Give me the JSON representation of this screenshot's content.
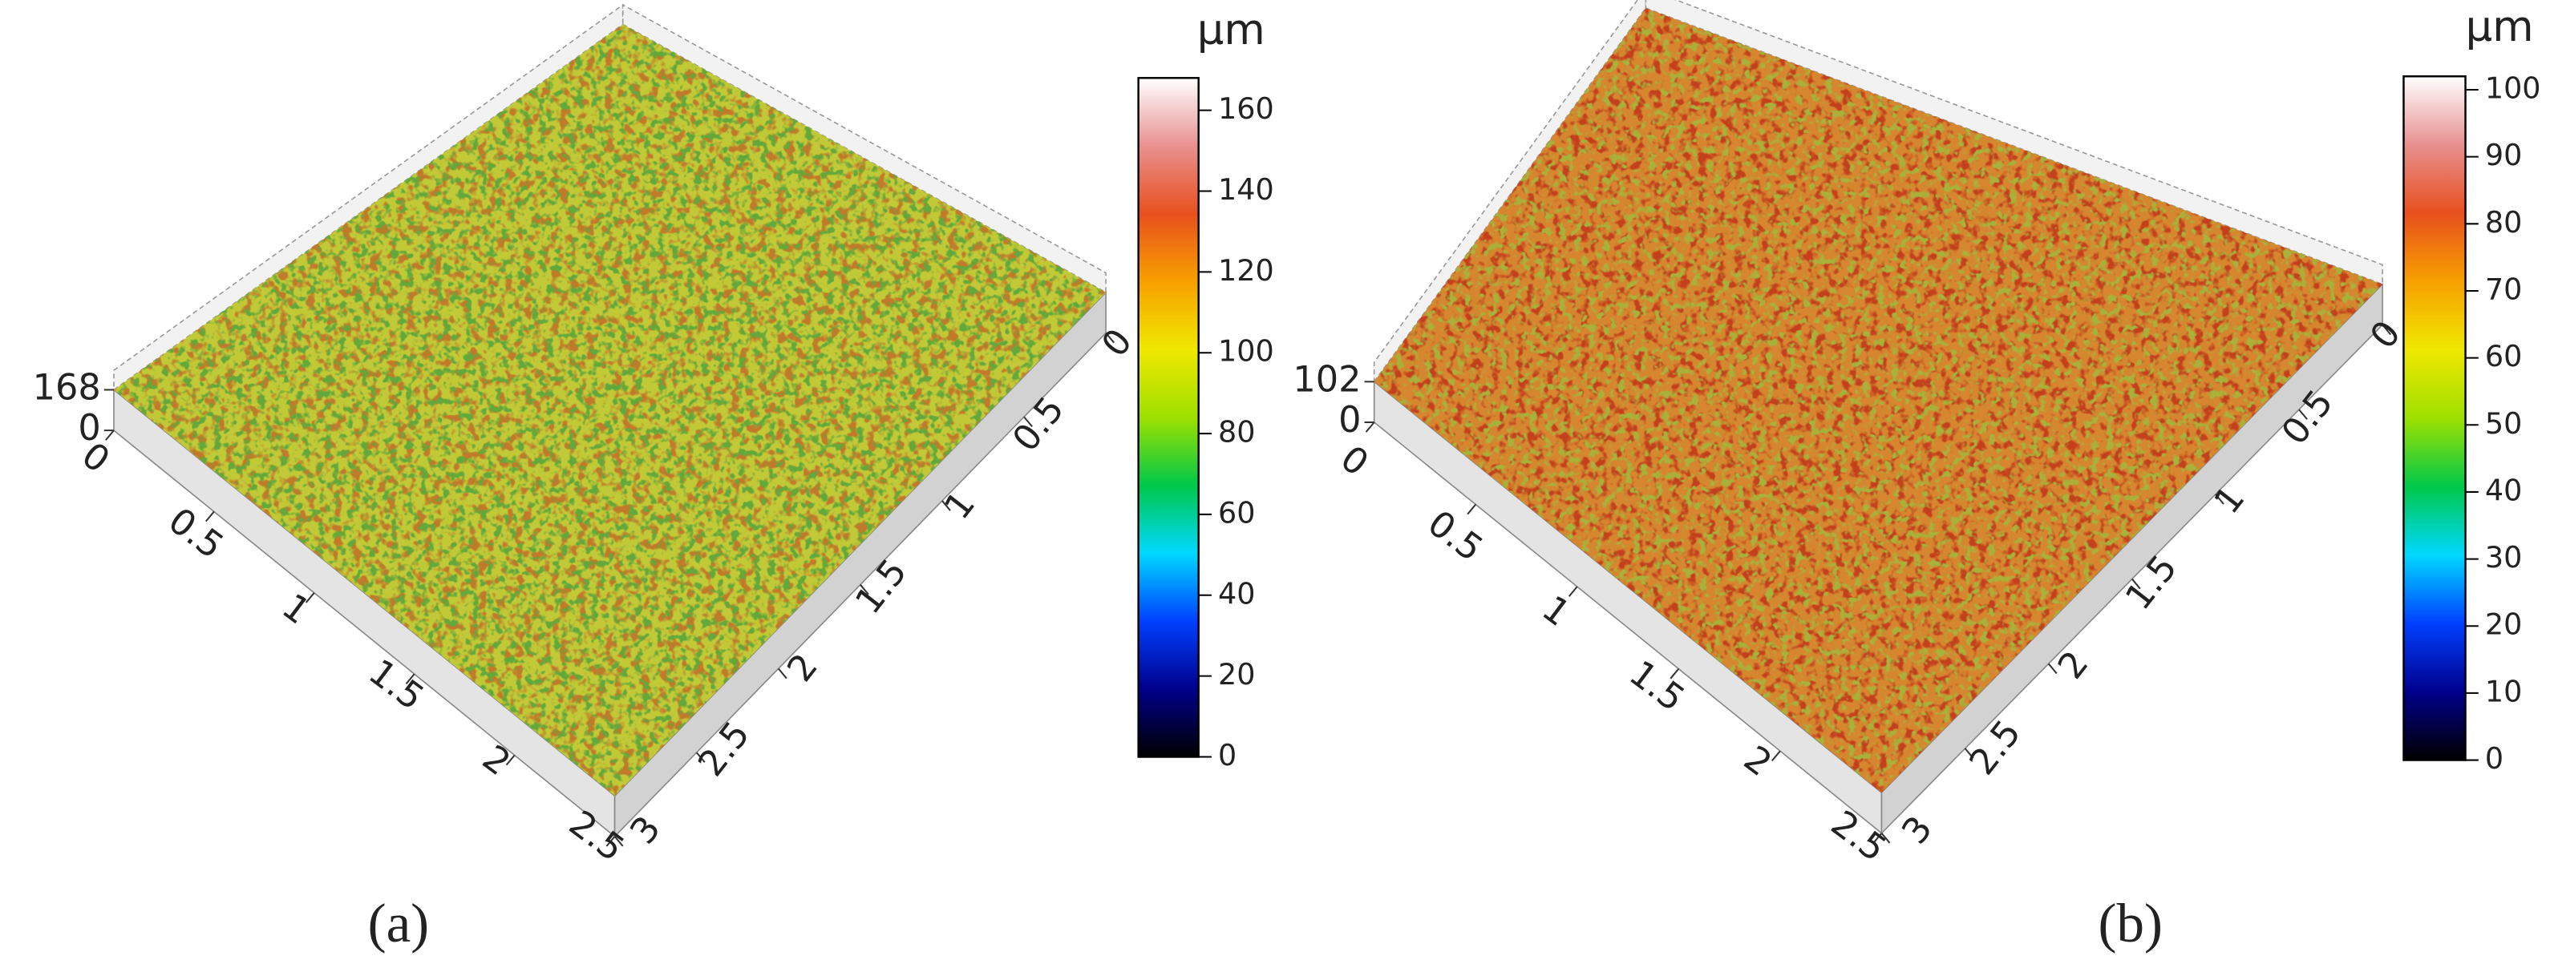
{
  "chart_data": [
    {
      "type": "surface3d",
      "label": "(a)",
      "unit": "μm",
      "xlim": [
        0,
        2.5
      ],
      "xticks": [
        0,
        0.5,
        1,
        1.5,
        2,
        2.5
      ],
      "ylim": [
        0,
        3
      ],
      "yticks": [
        0,
        0.5,
        1,
        1.5,
        2,
        2.5,
        3
      ],
      "zlim": [
        0,
        168
      ],
      "zticks": [
        0,
        168
      ],
      "colorbar": {
        "lim": [
          0,
          168
        ],
        "ticks": [
          0,
          20,
          40,
          60,
          80,
          100,
          120,
          140,
          160
        ]
      },
      "colors": [
        "#c2c936",
        "#c07a2a",
        "#62a83a"
      ],
      "colormap": [
        "#000000",
        "#00008c",
        "#0040ff",
        "#00d8ff",
        "#00c84a",
        "#9ee000",
        "#f0e800",
        "#f7a000",
        "#e8501e",
        "#e89090",
        "#ffffff"
      ]
    },
    {
      "type": "surface3d",
      "label": "(b)",
      "unit": "μm",
      "xlim": [
        0,
        2.5
      ],
      "xticks": [
        0,
        0.5,
        1,
        1.5,
        2,
        2.5
      ],
      "ylim": [
        0,
        3
      ],
      "yticks": [
        0,
        0.5,
        1,
        1.5,
        2,
        2.5,
        3
      ],
      "zlim": [
        0,
        102
      ],
      "zticks": [
        0,
        102
      ],
      "colorbar": {
        "lim": [
          0,
          102
        ],
        "ticks": [
          0,
          10,
          20,
          30,
          40,
          50,
          60,
          70,
          80,
          90,
          100
        ]
      },
      "colors": [
        "#d5862f",
        "#c4401c",
        "#a8b23a"
      ],
      "colormap": [
        "#000000",
        "#00008c",
        "#0040ff",
        "#00d8ff",
        "#00c84a",
        "#9ee000",
        "#f0e800",
        "#f7a000",
        "#e8501e",
        "#e89090",
        "#ffffff"
      ]
    }
  ]
}
